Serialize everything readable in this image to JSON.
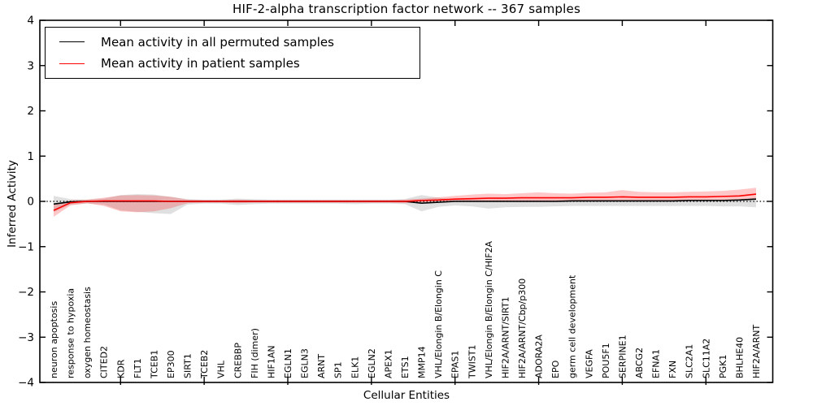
{
  "chart_data": {
    "type": "line",
    "title": "HIF-2-alpha transcription factor network -- 367 samples",
    "xlabel": "Cellular Entities",
    "ylabel": "Inferred Activity",
    "ylim": [
      -4,
      4
    ],
    "yticks": [
      "4",
      "3",
      "2",
      "1",
      "0",
      "−1",
      "−2",
      "−3",
      "−4"
    ],
    "ytick_values": [
      4,
      3,
      2,
      1,
      0,
      -1,
      -2,
      -3,
      -4
    ],
    "grid": false,
    "legend_position": "upper left",
    "zero_reference_line": true,
    "categories": [
      "neuron apoptosis",
      "response to hypoxia",
      "oxygen homeostasis",
      "CITED2",
      "KDR",
      "FLT1",
      "TCEB1",
      "EP300",
      "SIRT1",
      "TCEB2",
      "VHL",
      "CREBBP",
      "FIH (dimer)",
      "HIF1AN",
      "EGLN1",
      "EGLN3",
      "ARNT",
      "SP1",
      "ELK1",
      "EGLN2",
      "APEX1",
      "ETS1",
      "MMP14",
      "VHL/Elongin B/Elongin C",
      "EPAS1",
      "TWIST1",
      "VHL/Elongin B/Elongin C/HIF2A",
      "HIF2A/ARNT/SIRT1",
      "HIF2A/ARNT/Cbp/p300",
      "ADORA2A",
      "EPO",
      "germ cell development",
      "VEGFA",
      "POU5F1",
      "SERPINE1",
      "ABCG2",
      "EFNA1",
      "FXN",
      "SLC2A1",
      "SLC11A2",
      "PGK1",
      "BHLHE40",
      "HIF2A/ARNT"
    ],
    "series": [
      {
        "name": "Mean activity in all permuted samples",
        "color": "#000000",
        "values": [
          -0.06,
          -0.01,
          0.0,
          0.0,
          0.0,
          0.0,
          0.0,
          0.0,
          0.0,
          0.0,
          0.0,
          0.0,
          0.0,
          0.0,
          0.0,
          0.0,
          0.0,
          0.0,
          0.0,
          0.0,
          0.0,
          0.0,
          -0.04,
          -0.02,
          0.0,
          0.0,
          0.0,
          0.0,
          0.0,
          0.0,
          0.0,
          0.01,
          0.01,
          0.01,
          0.01,
          0.01,
          0.01,
          0.01,
          0.02,
          0.02,
          0.02,
          0.03,
          0.05
        ]
      },
      {
        "name": "Mean activity in patient samples",
        "color": "#ff0000",
        "values": [
          -0.2,
          -0.03,
          0.0,
          0.01,
          0.01,
          0.01,
          0.01,
          0.0,
          0.0,
          0.0,
          0.0,
          0.0,
          0.0,
          0.0,
          0.0,
          0.0,
          0.0,
          0.0,
          0.0,
          0.0,
          0.0,
          0.0,
          0.02,
          0.03,
          0.05,
          0.06,
          0.07,
          0.07,
          0.08,
          0.08,
          0.08,
          0.08,
          0.09,
          0.09,
          0.1,
          0.09,
          0.09,
          0.09,
          0.1,
          0.1,
          0.11,
          0.12,
          0.16
        ]
      }
    ],
    "bands": [
      {
        "name": "permuted-std-band",
        "color": "#999999",
        "opacity": 0.3,
        "upper": [
          0.12,
          0.05,
          0.04,
          0.06,
          0.14,
          0.16,
          0.15,
          0.1,
          0.05,
          0.04,
          0.04,
          0.06,
          0.05,
          0.04,
          0.04,
          0.04,
          0.04,
          0.04,
          0.04,
          0.04,
          0.04,
          0.05,
          0.14,
          0.08,
          0.05,
          0.04,
          0.04,
          0.04,
          0.04,
          0.04,
          0.04,
          0.04,
          0.04,
          0.04,
          0.04,
          0.04,
          0.04,
          0.04,
          0.04,
          0.04,
          0.04,
          0.05,
          0.08
        ],
        "lower": [
          -0.24,
          -0.07,
          -0.05,
          -0.07,
          -0.2,
          -0.23,
          -0.26,
          -0.28,
          -0.07,
          -0.05,
          -0.05,
          -0.08,
          -0.06,
          -0.05,
          -0.05,
          -0.05,
          -0.05,
          -0.05,
          -0.06,
          -0.05,
          -0.05,
          -0.06,
          -0.22,
          -0.12,
          -0.09,
          -0.11,
          -0.16,
          -0.13,
          -0.12,
          -0.12,
          -0.11,
          -0.1,
          -0.1,
          -0.1,
          -0.1,
          -0.1,
          -0.1,
          -0.1,
          -0.1,
          -0.1,
          -0.11,
          -0.11,
          -0.13
        ]
      },
      {
        "name": "patient-std-band",
        "color": "#ff0000",
        "opacity": 0.22,
        "upper": [
          -0.08,
          0.02,
          0.04,
          0.08,
          0.13,
          0.14,
          0.13,
          0.1,
          0.04,
          0.03,
          0.03,
          0.04,
          0.03,
          0.03,
          0.03,
          0.03,
          0.03,
          0.03,
          0.03,
          0.03,
          0.03,
          0.04,
          0.06,
          0.09,
          0.12,
          0.15,
          0.17,
          0.16,
          0.18,
          0.2,
          0.18,
          0.17,
          0.19,
          0.2,
          0.25,
          0.21,
          0.2,
          0.2,
          0.21,
          0.22,
          0.23,
          0.26,
          0.3
        ],
        "lower": [
          -0.34,
          -0.09,
          -0.04,
          -0.1,
          -0.22,
          -0.24,
          -0.22,
          -0.15,
          -0.04,
          -0.03,
          -0.03,
          -0.04,
          -0.03,
          -0.03,
          -0.03,
          -0.03,
          -0.03,
          -0.03,
          -0.03,
          -0.03,
          -0.03,
          -0.04,
          -0.02,
          0.0,
          0.0,
          0.0,
          0.01,
          0.01,
          0.01,
          0.01,
          0.01,
          0.02,
          0.02,
          0.02,
          0.02,
          0.02,
          0.02,
          0.02,
          0.03,
          0.03,
          0.03,
          0.03,
          0.04
        ]
      }
    ]
  }
}
